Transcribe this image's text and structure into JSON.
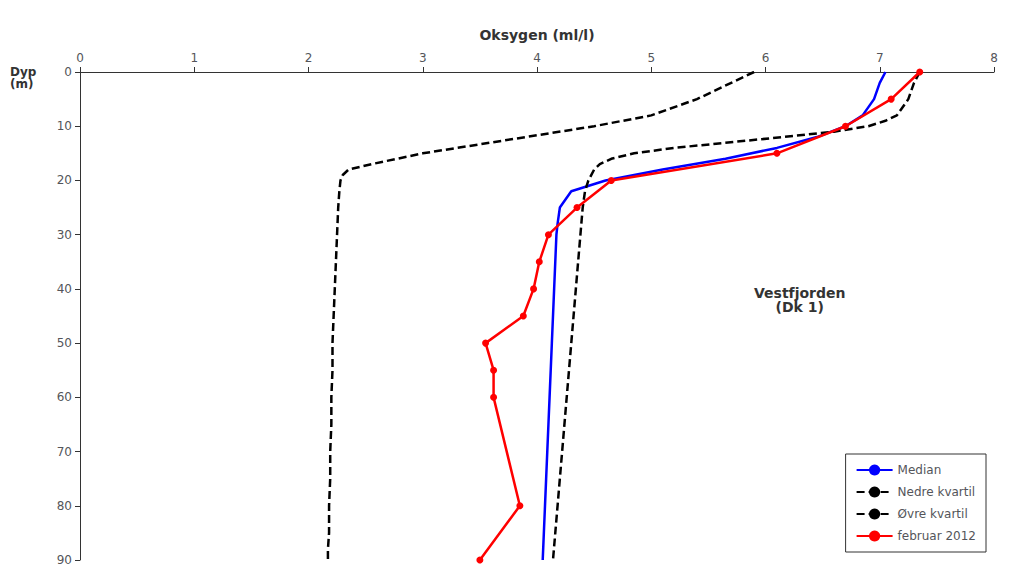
{
  "chart_data": {
    "type": "line",
    "xlabel": "Oksygen (ml/l)",
    "ylabel": "Dyp\n(m)",
    "xlim": [
      0,
      8
    ],
    "ylim": [
      90,
      0
    ],
    "xticks": [
      0,
      1,
      2,
      3,
      4,
      5,
      6,
      7,
      8
    ],
    "yticks": [
      0,
      10,
      20,
      30,
      40,
      50,
      60,
      70,
      80,
      90
    ],
    "grid": false,
    "legend": "lower right",
    "annotations": [
      {
        "text": "Vestfjorden\n(Dk 1)",
        "x": 6.3,
        "y": 42
      }
    ],
    "series": [
      {
        "name": "Median",
        "color": "#0000ff",
        "line_style": "solid",
        "marker": "none",
        "x": [
          7.05,
          7.0,
          6.95,
          6.85,
          6.7,
          6.45,
          6.1,
          5.65,
          5.1,
          4.6,
          4.3,
          4.2,
          4.18,
          4.17,
          4.16,
          4.15,
          4.14,
          4.13,
          4.12,
          4.11,
          4.1,
          4.09,
          4.08,
          4.07,
          4.06,
          4.05
        ],
        "y": [
          0,
          2,
          5,
          8,
          10,
          12,
          14,
          16,
          18,
          20,
          22,
          25,
          28,
          30,
          35,
          40,
          45,
          50,
          55,
          60,
          65,
          70,
          75,
          80,
          85,
          90
        ]
      },
      {
        "name": "Nedre kvartil",
        "color": "#000000",
        "line_style": "dashed",
        "marker": "none",
        "x": [
          5.9,
          5.7,
          5.4,
          5.0,
          4.5,
          3.9,
          3.0,
          2.55,
          2.35,
          2.3,
          2.28,
          2.27,
          2.26,
          2.25,
          2.24,
          2.23,
          2.22,
          2.21,
          2.21,
          2.2,
          2.2,
          2.19,
          2.19,
          2.18,
          2.18,
          2.18,
          2.17,
          2.17
        ],
        "y": [
          0,
          2,
          5,
          8,
          10,
          12,
          15,
          17,
          18,
          19,
          20,
          22,
          25,
          30,
          35,
          40,
          45,
          50,
          55,
          60,
          65,
          70,
          75,
          80,
          82,
          85,
          88,
          90
        ]
      },
      {
        "name": "Øvre kvartil",
        "color": "#000000",
        "line_style": "dashed",
        "marker": "none",
        "x": [
          7.35,
          7.3,
          7.25,
          7.15,
          7.05,
          6.9,
          6.6,
          6.15,
          5.2,
          4.85,
          4.65,
          4.55,
          4.5,
          4.45,
          4.42,
          4.4,
          4.38,
          4.36,
          4.34,
          4.32,
          4.3,
          4.28,
          4.26,
          4.24,
          4.22,
          4.2,
          4.18,
          4.16,
          4.14
        ],
        "y": [
          0,
          2,
          5,
          8,
          9,
          10,
          11,
          12,
          14,
          15,
          16,
          17,
          18,
          20,
          22,
          25,
          30,
          35,
          40,
          45,
          50,
          55,
          60,
          65,
          70,
          75,
          80,
          85,
          90
        ]
      },
      {
        "name": "februar 2012",
        "color": "#ff0000",
        "line_style": "solid",
        "marker": "circle",
        "x": [
          7.35,
          7.1,
          6.7,
          6.1,
          4.65,
          4.35,
          4.1,
          4.02,
          3.97,
          3.88,
          3.55,
          3.62,
          3.62,
          3.85,
          3.5
        ],
        "y": [
          0,
          5,
          10,
          15,
          20,
          25,
          30,
          35,
          40,
          45,
          50,
          55,
          60,
          80,
          90
        ]
      }
    ]
  }
}
